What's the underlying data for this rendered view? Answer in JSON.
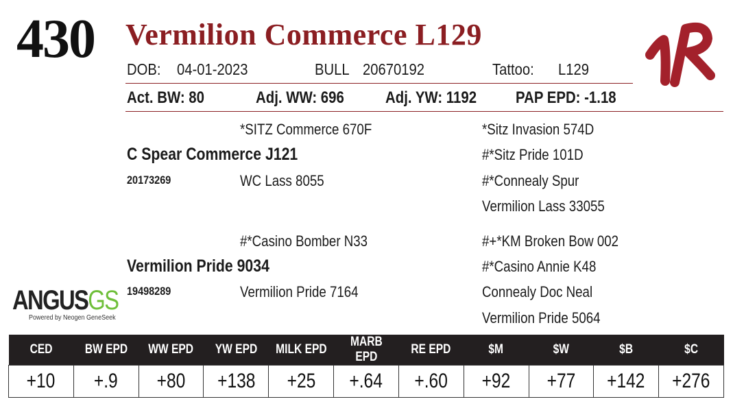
{
  "header": {
    "lot_number": "430",
    "animal_name": "Vermilion Commerce L129",
    "dob_label": "DOB:",
    "dob": "04-01-2023",
    "sex": "BULL",
    "registration": "20670192",
    "tattoo_label": "Tattoo:",
    "tattoo": "L129"
  },
  "stats": {
    "act_bw": "Act. BW: 80",
    "adj_ww": "Adj. WW: 696",
    "adj_yw": "Adj. YW: 1192",
    "pap_epd": "PAP EPD: -1.18"
  },
  "pedigree": {
    "sire": {
      "name": "C Spear Commerce J121",
      "reg": "20173269",
      "sire": "*SITZ Commerce 670F",
      "dam": "WC Lass 8055",
      "ss_sire": "*Sitz Invasion 574D",
      "ss_dam": "#*Sitz Pride 101D",
      "sd_sire": "#*Connealy Spur",
      "sd_dam": "Vermilion Lass 33055"
    },
    "dam": {
      "name": "Vermilion Pride 9034",
      "reg": "19498289",
      "sire": "#*Casino Bomber N33",
      "dam": "Vermilion Pride 7164",
      "ds_sire": "#+*KM Broken Bow 002",
      "ds_dam": "#*Casino Annie K48",
      "dd_sire": "Connealy Doc Neal",
      "dd_dam": "Vermilion Pride 5064"
    }
  },
  "logo": {
    "angus": "ANGUS",
    "gs": "GS",
    "tagline": "Powered by Neogen GeneSeek"
  },
  "epd": {
    "headers": [
      "CED",
      "BW EPD",
      "WW EPD",
      "YW EPD",
      "MILK EPD",
      "MARB EPD",
      "RE EPD",
      "$M",
      "$W",
      "$B",
      "$C"
    ],
    "values": [
      "+10",
      "+.9",
      "+80",
      "+138",
      "+25",
      "+.64",
      "+.60",
      "+92",
      "+77",
      "+142",
      "+276"
    ]
  },
  "brand": {
    "color": "#a3212b"
  },
  "colors": {
    "accent": "#8b1e22",
    "table_header": "#231f20",
    "logo_green": "#6fbf3a"
  }
}
